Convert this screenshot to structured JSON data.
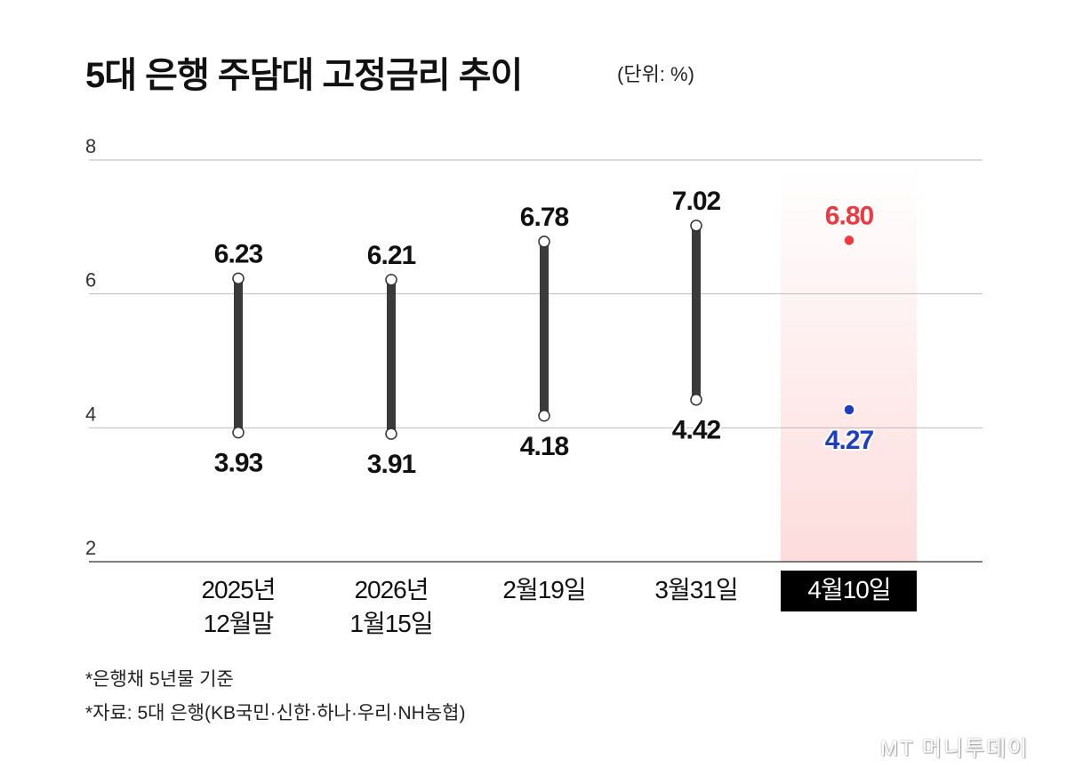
{
  "title": "5대 은행 주담대 고정금리 추이",
  "unit": "(단위: %)",
  "notes": [
    "*은행채 5년물 기준",
    "*자료: 5대 은행(KB국민·신한·하나·우리·NH농협)"
  ],
  "logo": "MT 머니투데이",
  "colors": {
    "bar": "#3a3a3a",
    "highlight_top": "#f0393f",
    "highlight_bottom": "#1d3fbf",
    "highlight_band": "#fddcdc"
  },
  "chart_data": {
    "type": "range-bar",
    "ylim": [
      2,
      8
    ],
    "yticks": [
      2,
      4,
      6,
      8
    ],
    "grid": true,
    "categories": [
      [
        "2025년",
        "12월말"
      ],
      [
        "2026년",
        "1월15일"
      ],
      [
        "2월19일"
      ],
      [
        "3월31일"
      ],
      [
        "4월10일"
      ]
    ],
    "series": [
      {
        "name": "",
        "values": [
          6.23,
          6.21,
          6.78,
          7.02,
          6.8
        ]
      },
      {
        "name": "",
        "values": [
          3.93,
          3.91,
          4.18,
          4.42,
          4.27
        ]
      }
    ],
    "high_labels": [
      "6.23",
      "6.21",
      "6.78",
      "7.02",
      "6.80"
    ],
    "low_labels": [
      "3.93",
      "3.91",
      "4.18",
      "4.42",
      "4.27"
    ],
    "highlighted_index": 4
  }
}
